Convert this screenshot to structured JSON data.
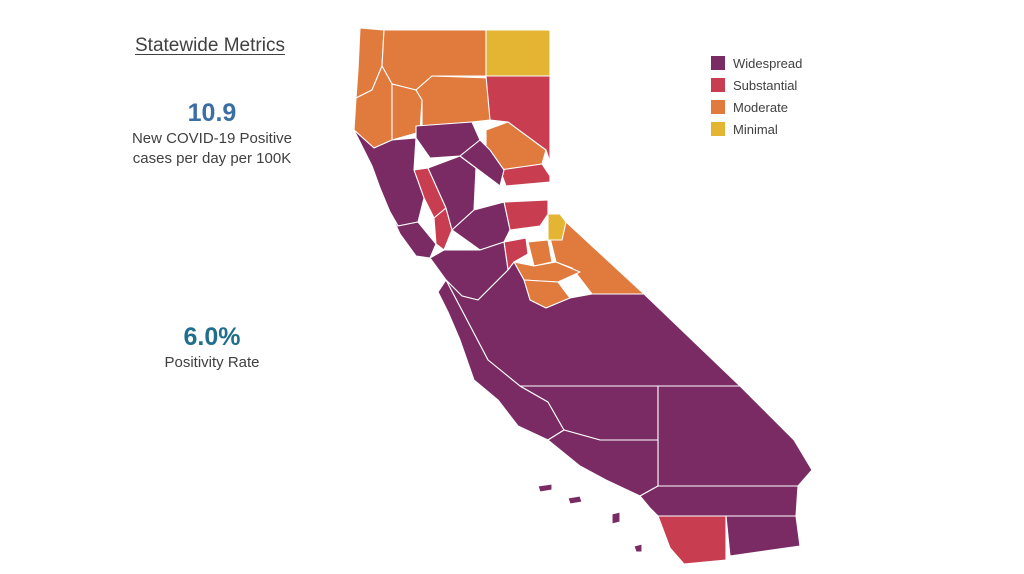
{
  "metrics": {
    "title": "Statewide Metrics",
    "cases": {
      "value": "10.9",
      "label_line1": "New COVID-19 Positive",
      "label_line2": "cases per day per 100K",
      "color": "#3B6EA5"
    },
    "positivity": {
      "value": "6.0%",
      "label": "Positivity Rate",
      "color": "#1F6E8C"
    }
  },
  "legend": [
    {
      "label": "Widespread",
      "color": "#7A2B64"
    },
    {
      "label": "Substantial",
      "color": "#C83E50"
    },
    {
      "label": "Moderate",
      "color": "#E07A3D"
    },
    {
      "label": "Minimal",
      "color": "#E3B532"
    }
  ]
}
